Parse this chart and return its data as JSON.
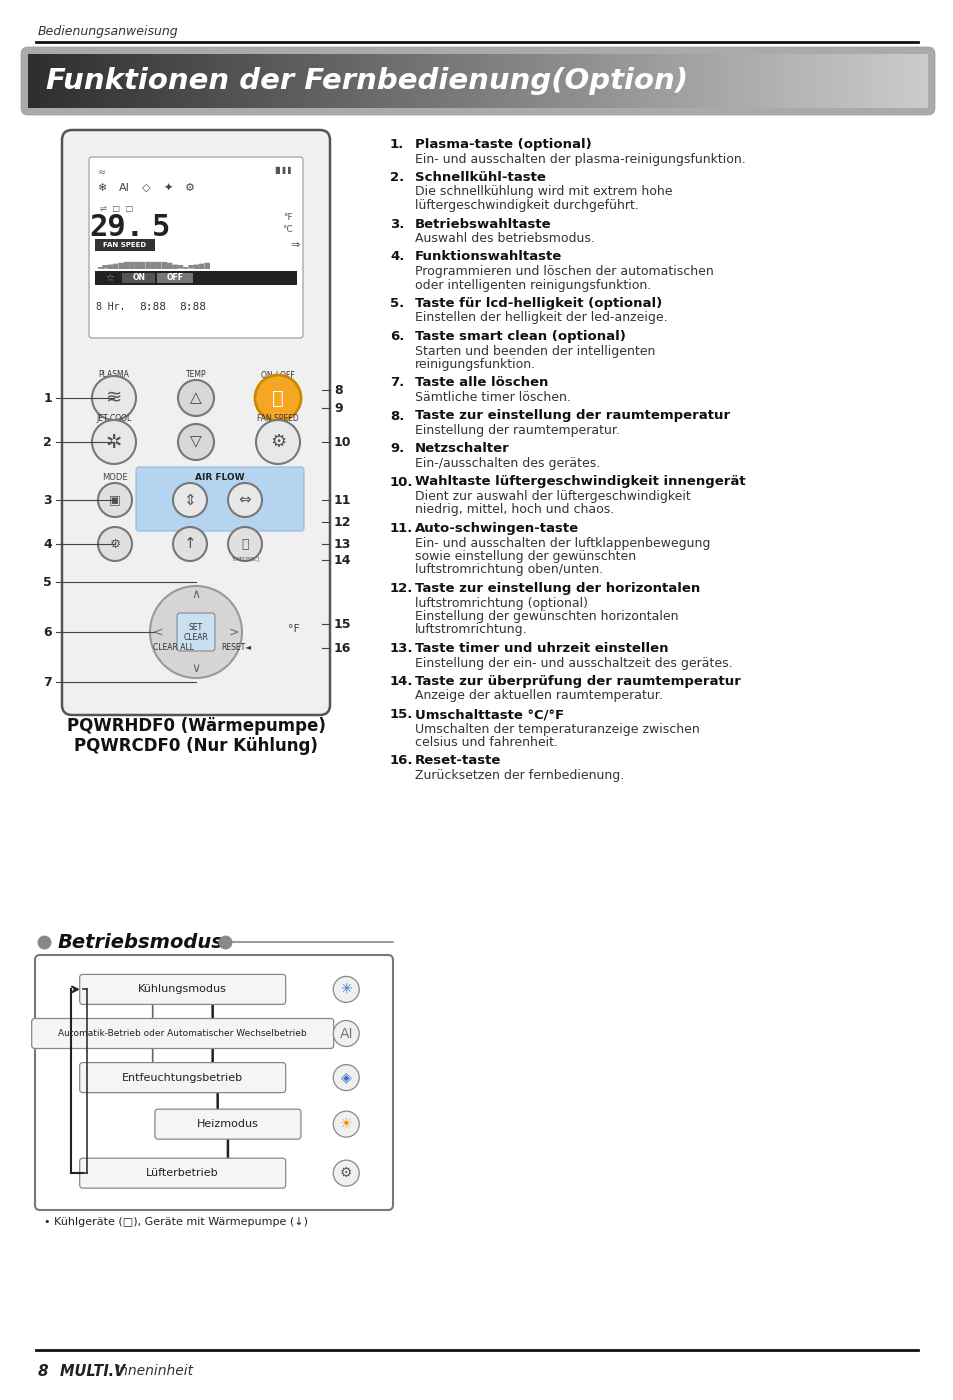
{
  "page_bg": "#ffffff",
  "header_italic": "Bedienungsanweisung",
  "title_text": "Funktionen der Fernbedienung(Option)",
  "remote_model_line1": "PQWRHDF0 (Wärmepumpe)",
  "remote_model_line2": "PQWRCDF0 (Nur Kühlung)",
  "section_betrieb": "Betriebsmodus",
  "footer_num": "8",
  "footer_brand": "MULTI V",
  "footer_dot": ".",
  "footer_label": "Inneninheit",
  "right_items": [
    {
      "n": "1.",
      "b": "Plasma-taste (optional)",
      "t": [
        "Ein- und ausschalten der plasma-reinigungsfunktion."
      ]
    },
    {
      "n": "2.",
      "b": "Schnellkühl-taste",
      "t": [
        "Die schnellkühlung wird mit extrem hohe",
        "lüftergeschwindigkeit durchgeführt."
      ]
    },
    {
      "n": "3.",
      "b": "Betriebswahltaste",
      "t": [
        "Auswahl des betriebsmodus."
      ]
    },
    {
      "n": "4.",
      "b": "Funktionswahltaste",
      "t": [
        "Programmieren und löschen der automatischen",
        "oder intelligenten reinigungsfunktion."
      ]
    },
    {
      "n": "5.",
      "b": "Taste für lcd-helligkeit (optional)",
      "t": [
        "Einstellen der helligkeit der led-anzeige."
      ]
    },
    {
      "n": "6.",
      "b": "Taste smart clean (optional)",
      "t": [
        "Starten und beenden der intelligenten",
        "reinigungsfunktion."
      ]
    },
    {
      "n": "7.",
      "b": "Taste alle löschen",
      "t": [
        "Sämtliche timer löschen."
      ]
    },
    {
      "n": "8.",
      "b": "Taste zur einstellung der raumtemperatur",
      "t": [
        "Einstellung der raumtemperatur."
      ]
    },
    {
      "n": "9.",
      "b": "Netzschalter",
      "t": [
        "Ein-/ausschalten des gerätes."
      ]
    },
    {
      "n": "10.",
      "b": "Wahltaste lüftergeschwindigkeit innengerät",
      "t": [
        "Dient zur auswahl der lüftergeschwindigkeit",
        "niedrig, mittel, hoch und chaos."
      ]
    },
    {
      "n": "11.",
      "b": "Auto-schwingen-taste",
      "t": [
        "Ein- und ausschalten der luftklappenbewegung",
        "sowie einstellung der gewünschten",
        "luftstromrichtung oben/unten."
      ]
    },
    {
      "n": "12.",
      "b": "Taste zur einstellung der horizontalen",
      "t": [
        "luftstromrichtung (optional)",
        "Einstellung der gewünschten horizontalen",
        "luftstromrichtung."
      ]
    },
    {
      "n": "13.",
      "b": "Taste timer und uhrzeit einstellen",
      "t": [
        "Einstellung der ein- und ausschaltzeit des gerätes."
      ]
    },
    {
      "n": "14.",
      "b": "Taste zur überprüfung der raumtemperatur",
      "t": [
        "Anzeige der aktuellen raumtemperatur."
      ]
    },
    {
      "n": "15.",
      "b": "Umschalttaste °C/°F",
      "t": [
        "Umschalten der temperaturanzeige zwischen",
        "celsius und fahrenheit."
      ]
    },
    {
      "n": "16.",
      "b": "Reset-taste",
      "t": [
        "Zurücksetzen der fernbedienung."
      ]
    }
  ]
}
